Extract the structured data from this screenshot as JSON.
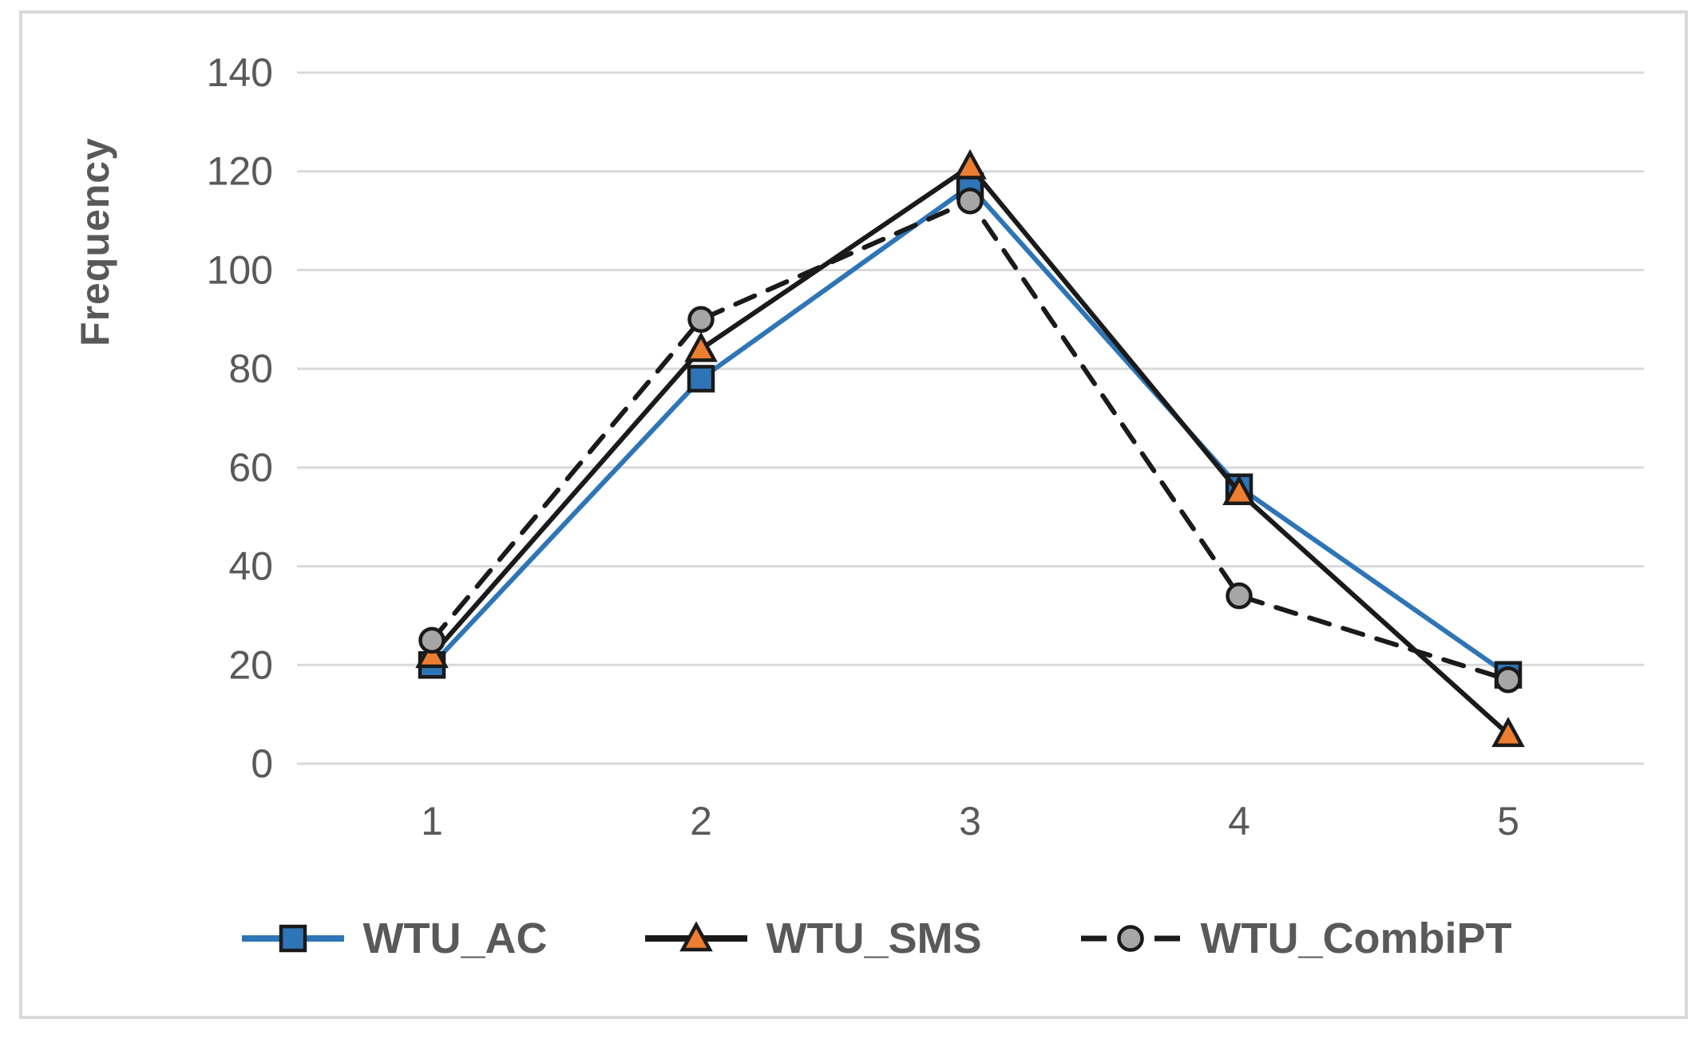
{
  "chart_data": {
    "type": "line",
    "title": "",
    "xlabel": "",
    "ylabel": "Frequency",
    "categories": [
      "1",
      "2",
      "3",
      "4",
      "5"
    ],
    "series": [
      {
        "name": "WTU_AC",
        "values": [
          20,
          78,
          117,
          56,
          18
        ],
        "line_color": "#2e75b6",
        "line_style": "solid",
        "marker": "square",
        "marker_fill": "#2e75b6"
      },
      {
        "name": "WTU_SMS",
        "values": [
          22,
          84,
          121,
          55,
          6
        ],
        "line_color": "#1a1a1a",
        "line_style": "solid",
        "marker": "triangle",
        "marker_fill": "#ed7d31"
      },
      {
        "name": "WTU_CombiPT",
        "values": [
          25,
          90,
          114,
          34,
          17
        ],
        "line_color": "#1a1a1a",
        "line_style": "dashed",
        "marker": "circle",
        "marker_fill": "#a6a6a6"
      }
    ],
    "ylim": [
      0,
      140
    ],
    "yticks": [
      0,
      20,
      40,
      60,
      80,
      100,
      120,
      140
    ],
    "grid": true,
    "legend_position": "bottom",
    "gridline_color": "#d9d9d9",
    "axis_text_color": "#595959",
    "marker_stroke_color": "#1a1a1a"
  }
}
